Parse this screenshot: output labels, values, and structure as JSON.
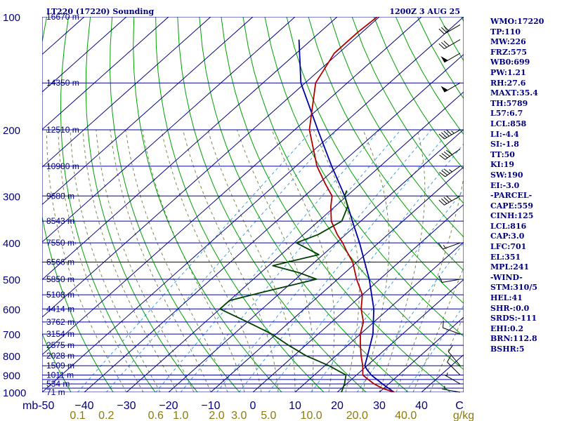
{
  "header": {
    "station": "LT220 (17220) Sounding",
    "time": "1200Z  3 AUG 25"
  },
  "indices": [
    "WMO:17220",
    "TP:110",
    "MW:226",
    "FRZ:575",
    "WB0:699",
    "PW:1.21",
    "RH:27.6",
    "MAXT:35.4",
    "TH:5789",
    "L57:6.7",
    "LCL:858",
    "LI:-4.4",
    "SI:-1.8",
    "TT:50",
    "KI:19",
    "SW:190",
    "EI:-3.0",
    "-PARCEL-",
    "CAPE:559",
    "CINH:125",
    "LCL:816",
    "CAP:3.0",
    "LFC:701",
    "EL:351",
    "MPL:241",
    "-WIND-",
    "STM:310/5",
    "HEL:41",
    "SHR-:0.0",
    "SRDS:-111",
    "EHI:0.2",
    "BRN:112.8",
    "BSHR:5"
  ],
  "colors": {
    "isobar": "#0000a0",
    "isotherm": "#000080",
    "dry_adiabat": "#00a000",
    "moist_adiabat": "#7a8a50",
    "mixing_ratio": "#40a0e0",
    "temperature": "#b00000",
    "dewpoint": "#004000",
    "parcel": "#0000a0",
    "wind": "#000000"
  },
  "chart_data": {
    "type": "skew-t",
    "pressure_ticks": [
      "100",
      "200",
      "300",
      "400",
      "500",
      "600",
      "700",
      "800",
      "900",
      "1000"
    ],
    "pressure_ticks_mb": [
      100,
      200,
      300,
      400,
      500,
      600,
      700,
      800,
      900,
      1000
    ],
    "isobars_mb": [
      100,
      150,
      200,
      250,
      300,
      350,
      400,
      450,
      500,
      550,
      600,
      650,
      700,
      750,
      800,
      850,
      900,
      925,
      950,
      975,
      1000
    ],
    "temperature_ticks": [
      -50,
      -40,
      -30,
      -20,
      -10,
      0,
      10,
      20,
      30,
      40
    ],
    "temperature_tick_labels": [
      "mb-50",
      "−40",
      "−30",
      "−20",
      "−10",
      "0",
      "10",
      "20",
      "30",
      "40",
      "C"
    ],
    "mixing_ratio_labels": [
      "0.1",
      "0.2",
      "0.6",
      "1.0",
      "2.0",
      "3.0",
      "5.0",
      "10.0",
      "20.0",
      "40.0",
      "g/kg"
    ],
    "mixing_ratio_values": [
      0.1,
      0.2,
      0.6,
      1.0,
      2.0,
      3.0,
      5.0,
      10.0,
      20.0,
      40.0
    ],
    "heights": [
      {
        "p": 100,
        "label": "16670 m"
      },
      {
        "p": 150,
        "label": "14350 m"
      },
      {
        "p": 200,
        "label": "12510 m"
      },
      {
        "p": 250,
        "label": "10980 m"
      },
      {
        "p": 300,
        "label": "9680 m"
      },
      {
        "p": 350,
        "label": "8543 m"
      },
      {
        "p": 400,
        "label": "7550 m"
      },
      {
        "p": 450,
        "label": "6566 m"
      },
      {
        "p": 500,
        "label": "5850 m"
      },
      {
        "p": 550,
        "label": "5108 m"
      },
      {
        "p": 600,
        "label": "4414 m"
      },
      {
        "p": 650,
        "label": "3762 m"
      },
      {
        "p": 700,
        "label": "3154 m"
      },
      {
        "p": 750,
        "label": "2575 m"
      },
      {
        "p": 800,
        "label": "2028 m"
      },
      {
        "p": 850,
        "label": "1509 m"
      },
      {
        "p": 900,
        "label": "1011 m"
      },
      {
        "p": 950,
        "label": "534 m"
      },
      {
        "p": 1000,
        "label": "71 m"
      }
    ],
    "temperature_profile": [
      {
        "p": 1000,
        "t": 33.5
      },
      {
        "p": 975,
        "t": 29.5
      },
      {
        "p": 950,
        "t": 26.5
      },
      {
        "p": 925,
        "t": 24.0
      },
      {
        "p": 900,
        "t": 21.5
      },
      {
        "p": 850,
        "t": 19.0
      },
      {
        "p": 800,
        "t": 16.0
      },
      {
        "p": 750,
        "t": 13.0
      },
      {
        "p": 700,
        "t": 10.0
      },
      {
        "p": 650,
        "t": 7.5
      },
      {
        "p": 600,
        "t": 3.5
      },
      {
        "p": 550,
        "t": 0.0
      },
      {
        "p": 500,
        "t": -5.5
      },
      {
        "p": 450,
        "t": -11.0
      },
      {
        "p": 420,
        "t": -15.5
      },
      {
        "p": 400,
        "t": -18.5
      },
      {
        "p": 380,
        "t": -22.0
      },
      {
        "p": 350,
        "t": -27.0
      },
      {
        "p": 320,
        "t": -31.0
      },
      {
        "p": 300,
        "t": -33.5
      },
      {
        "p": 280,
        "t": -38.0
      },
      {
        "p": 250,
        "t": -45.0
      },
      {
        "p": 200,
        "t": -56.5
      },
      {
        "p": 150,
        "t": -67.5
      },
      {
        "p": 125,
        "t": -71.0
      },
      {
        "p": 110,
        "t": -71.0
      },
      {
        "p": 100,
        "t": -70.5
      }
    ],
    "dewpoint_profile": [
      {
        "p": 1000,
        "t": 21.0
      },
      {
        "p": 950,
        "t": 19.5
      },
      {
        "p": 900,
        "t": 17.5
      },
      {
        "p": 850,
        "t": 11.0
      },
      {
        "p": 800,
        "t": 3.0
      },
      {
        "p": 750,
        "t": -4.0
      },
      {
        "p": 700,
        "t": -11.0
      },
      {
        "p": 650,
        "t": -20.0
      },
      {
        "p": 600,
        "t": -30.0
      },
      {
        "p": 570,
        "t": -30.0
      },
      {
        "p": 540,
        "t": -24.0
      },
      {
        "p": 500,
        "t": -15.0
      },
      {
        "p": 480,
        "t": -21.0
      },
      {
        "p": 460,
        "t": -29.0
      },
      {
        "p": 430,
        "t": -21.0
      },
      {
        "p": 400,
        "t": -29.5
      },
      {
        "p": 380,
        "t": -26.5
      },
      {
        "p": 350,
        "t": -24.5
      },
      {
        "p": 320,
        "t": -27.0
      },
      {
        "p": 300,
        "t": -30.5
      },
      {
        "p": 290,
        "t": -31.5
      }
    ],
    "parcel_profile": [
      {
        "p": 1000,
        "t": 33.5
      },
      {
        "p": 950,
        "t": 28.5
      },
      {
        "p": 900,
        "t": 23.5
      },
      {
        "p": 870,
        "t": 21.0
      },
      {
        "p": 850,
        "t": 19.5
      },
      {
        "p": 800,
        "t": 17.5
      },
      {
        "p": 700,
        "t": 13.0
      },
      {
        "p": 600,
        "t": 6.5
      },
      {
        "p": 500,
        "t": -2.5
      },
      {
        "p": 400,
        "t": -14.5
      },
      {
        "p": 350,
        "t": -22.0
      },
      {
        "p": 300,
        "t": -30.5
      },
      {
        "p": 250,
        "t": -41.5
      },
      {
        "p": 200,
        "t": -54.5
      },
      {
        "p": 150,
        "t": -71.0
      },
      {
        "p": 115,
        "t": -83.0
      }
    ],
    "wind_profile": [
      {
        "p": 1000,
        "dir": 280,
        "kt": 5
      },
      {
        "p": 950,
        "dir": 300,
        "kt": 5
      },
      {
        "p": 900,
        "dir": 315,
        "kt": 10
      },
      {
        "p": 850,
        "dir": 320,
        "kt": 10
      },
      {
        "p": 700,
        "dir": 290,
        "kt": 10
      },
      {
        "p": 500,
        "dir": 260,
        "kt": 10
      },
      {
        "p": 400,
        "dir": 250,
        "kt": 15
      },
      {
        "p": 300,
        "dir": 240,
        "kt": 40
      },
      {
        "p": 250,
        "dir": 235,
        "kt": 35
      },
      {
        "p": 225,
        "dir": 235,
        "kt": 40
      },
      {
        "p": 200,
        "dir": 240,
        "kt": 45
      },
      {
        "p": 150,
        "dir": 240,
        "kt": 50
      },
      {
        "p": 125,
        "dir": 240,
        "kt": 50
      },
      {
        "p": 115,
        "dir": 240,
        "kt": 30
      },
      {
        "p": 105,
        "dir": 240,
        "kt": 30
      }
    ],
    "xlim_celsius": [
      -50,
      50
    ],
    "ylim_mb": [
      1000,
      100
    ],
    "y_scale": "log"
  }
}
